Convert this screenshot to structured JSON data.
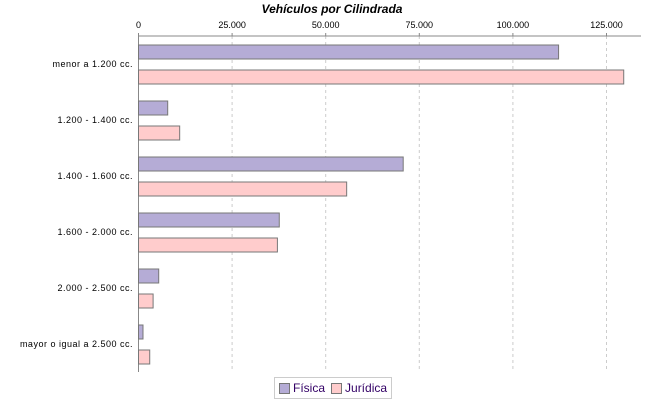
{
  "chart_data": {
    "type": "bar",
    "orientation": "horizontal",
    "title": "Vehículos por Cilindrada",
    "categories": [
      "menor a 1.200 cc.",
      "1.200 - 1.400 cc.",
      "1.400 - 1.600 cc.",
      "1.600 - 2.000 cc.",
      "2.000 - 2.500 cc.",
      "mayor o igual a 2.500 cc."
    ],
    "series": [
      {
        "name": "Física",
        "color": "#b5acd6",
        "values": [
          112200,
          7800,
          70700,
          37600,
          5400,
          1200
        ]
      },
      {
        "name": "Jurídica",
        "color": "#ffcccc",
        "values": [
          129600,
          11000,
          55600,
          37100,
          3900,
          3000
        ]
      }
    ],
    "xticks": [
      "0",
      "25.000",
      "50.000",
      "75.000",
      "100.000",
      "125.000"
    ],
    "xtick_values": [
      0,
      25000,
      50000,
      75000,
      100000,
      125000
    ],
    "xlim": [
      0,
      134000
    ],
    "axis_position": "top",
    "grid": true,
    "legend_position": "bottom"
  }
}
